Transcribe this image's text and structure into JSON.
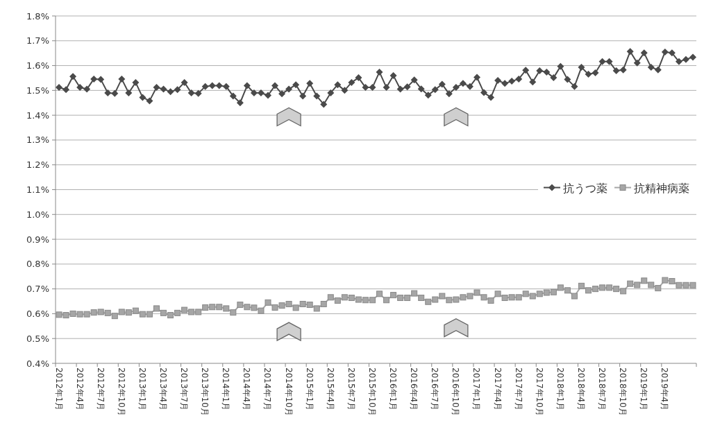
{
  "chart_data": {
    "type": "line",
    "categories": [
      "2012年1月",
      null,
      null,
      "2012年4月",
      null,
      null,
      "2012年7月",
      null,
      null,
      "2012年10月",
      null,
      null,
      "2013年1月",
      null,
      null,
      "2013年4月",
      null,
      null,
      "2013年7月",
      null,
      null,
      "2013年10月",
      null,
      null,
      "2014年1月",
      null,
      null,
      "2014年4月",
      null,
      null,
      "2014年7月",
      null,
      null,
      "2014年10月",
      null,
      null,
      "2015年1月",
      null,
      null,
      "2015年4月",
      null,
      null,
      "2015年7月",
      null,
      null,
      "2015年10月",
      null,
      null,
      "2016年1月",
      null,
      null,
      "2016年4月",
      null,
      null,
      "2016年7月",
      null,
      null,
      "2016年10月",
      null,
      null,
      "2017年1月",
      null,
      null,
      "2017年4月",
      null,
      null,
      "2017年7月",
      null,
      null,
      "2017年10月",
      null,
      null,
      "2018年1月",
      null,
      null,
      "2018年4月",
      null,
      null,
      "2018年7月",
      null,
      null,
      "2018年10月",
      null,
      null,
      "2019年1月",
      null,
      null,
      "2019年4月",
      null,
      null,
      null,
      null
    ],
    "series": [
      {
        "name": "抗うつ薬",
        "color": "#4a4a4a",
        "marker": "diamond",
        "values": [
          1.512,
          1.503,
          1.556,
          1.512,
          1.505,
          1.546,
          1.544,
          1.49,
          1.488,
          1.546,
          1.49,
          1.532,
          1.472,
          1.458,
          1.512,
          1.505,
          1.495,
          1.503,
          1.532,
          1.49,
          1.488,
          1.516,
          1.519,
          1.519,
          1.516,
          1.477,
          1.45,
          1.519,
          1.49,
          1.49,
          1.48,
          1.519,
          1.486,
          1.505,
          1.523,
          1.477,
          1.528,
          1.477,
          1.444,
          1.49,
          1.523,
          1.5,
          1.532,
          1.551,
          1.512,
          1.512,
          1.574,
          1.512,
          1.56,
          1.505,
          1.514,
          1.542,
          1.506,
          1.481,
          1.503,
          1.525,
          1.486,
          1.512,
          1.528,
          1.516,
          1.553,
          1.491,
          1.472,
          1.54,
          1.528,
          1.537,
          1.546,
          1.581,
          1.534,
          1.579,
          1.574,
          1.551,
          1.597,
          1.544,
          1.516,
          1.593,
          1.565,
          1.571,
          1.616,
          1.616,
          1.579,
          1.583,
          1.657,
          1.611,
          1.651,
          1.593,
          1.583,
          1.655,
          1.651,
          1.616,
          1.625,
          1.634
        ]
      },
      {
        "name": "抗精神病薬",
        "color": "#a6a6a6",
        "marker": "square",
        "values": [
          0.596,
          0.594,
          0.6,
          0.598,
          0.598,
          0.605,
          0.607,
          0.603,
          0.591,
          0.607,
          0.605,
          0.612,
          0.598,
          0.598,
          0.621,
          0.603,
          0.594,
          0.603,
          0.615,
          0.607,
          0.607,
          0.625,
          0.627,
          0.627,
          0.621,
          0.605,
          0.636,
          0.627,
          0.624,
          0.612,
          0.645,
          0.625,
          0.633,
          0.639,
          0.624,
          0.639,
          0.636,
          0.621,
          0.639,
          0.666,
          0.653,
          0.666,
          0.664,
          0.657,
          0.655,
          0.655,
          0.68,
          0.655,
          0.675,
          0.664,
          0.664,
          0.682,
          0.664,
          0.648,
          0.657,
          0.671,
          0.655,
          0.657,
          0.666,
          0.671,
          0.685,
          0.666,
          0.653,
          0.68,
          0.664,
          0.666,
          0.666,
          0.68,
          0.671,
          0.68,
          0.685,
          0.687,
          0.705,
          0.694,
          0.671,
          0.712,
          0.694,
          0.7,
          0.705,
          0.705,
          0.7,
          0.691,
          0.721,
          0.716,
          0.733,
          0.716,
          0.703,
          0.735,
          0.731,
          0.715,
          0.715,
          0.715
        ]
      }
    ],
    "ylim": [
      0.4,
      1.8
    ],
    "yticks": [
      {
        "value": 0.4,
        "label": "0.4%"
      },
      {
        "value": 0.5,
        "label": "0.5%"
      },
      {
        "value": 0.6,
        "label": "0.6%"
      },
      {
        "value": 0.7,
        "label": "0.7%"
      },
      {
        "value": 0.8,
        "label": "0.8%"
      },
      {
        "value": 0.9,
        "label": "0.9%"
      },
      {
        "value": 1.0,
        "label": "1.0%"
      },
      {
        "value": 1.1,
        "label": "1.1%"
      },
      {
        "value": 1.2,
        "label": "1.2%"
      },
      {
        "value": 1.3,
        "label": "1.3%"
      },
      {
        "value": 1.4,
        "label": "1.4%"
      },
      {
        "value": 1.5,
        "label": "1.5%"
      },
      {
        "value": 1.6,
        "label": "1.6%"
      },
      {
        "value": 1.7,
        "label": "1.7%"
      },
      {
        "value": 1.8,
        "label": "1.8%"
      }
    ],
    "grid": "y",
    "legend": "right"
  }
}
